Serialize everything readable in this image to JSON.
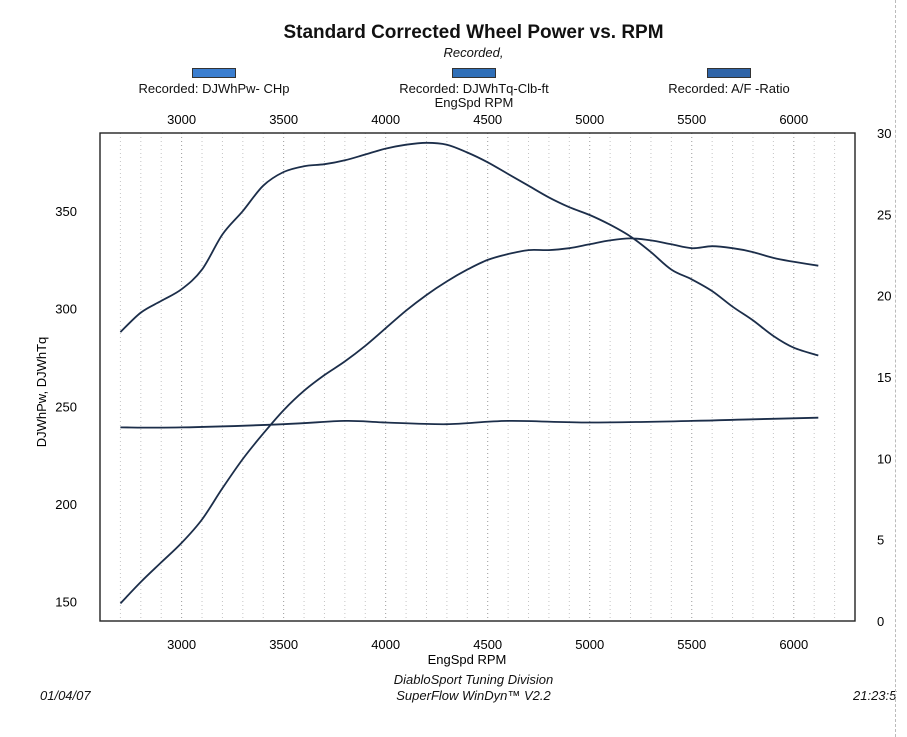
{
  "chart_data": {
    "type": "line",
    "title": "Standard Corrected Wheel Power vs. RPM",
    "subtitle": "Recorded,",
    "legend": [
      {
        "label": "Recorded: DJWhPw- CHp",
        "color": "#3a7ed0"
      },
      {
        "label": "Recorded: DJWhTq-Clb-ft",
        "color": "#2f6fb8"
      },
      {
        "label": "Recorded: A/F -Ratio",
        "color": "#2f64a8"
      }
    ],
    "top_axis_label": "EngSpd RPM",
    "xlabel": "EngSpd RPM",
    "ylabel": "DJWhPw, DJWhTq",
    "xlim": [
      2600,
      6300
    ],
    "ylim": [
      140,
      390
    ],
    "y2lim": [
      0,
      30
    ],
    "x_ticks": [
      3000,
      3500,
      4000,
      4500,
      5000,
      5500,
      6000
    ],
    "y_ticks": [
      150,
      200,
      250,
      300,
      350
    ],
    "y2_ticks": [
      0,
      5,
      10,
      15,
      20,
      25,
      30
    ],
    "grid": {
      "vertical": true,
      "horizontal": false
    },
    "series": [
      {
        "name": "DJWhPw- CHp",
        "axis": "left",
        "x": [
          2700,
          2800,
          2900,
          3000,
          3100,
          3200,
          3300,
          3400,
          3500,
          3600,
          3700,
          3800,
          3900,
          4000,
          4100,
          4200,
          4300,
          4400,
          4500,
          4600,
          4700,
          4800,
          4900,
          5000,
          5100,
          5200,
          5300,
          5400,
          5500,
          5600,
          5700,
          5800,
          5900,
          6000,
          6120
        ],
        "y": [
          149,
          160,
          170,
          180,
          192,
          208,
          223,
          236,
          248,
          258,
          266,
          273,
          281,
          290,
          299,
          307,
          314,
          320,
          325,
          328,
          330,
          330,
          331,
          333,
          335,
          336,
          335,
          333,
          331,
          332,
          331,
          329,
          326,
          324,
          322
        ]
      },
      {
        "name": "DJWhTq-Clb-ft",
        "axis": "left",
        "x": [
          2700,
          2800,
          2900,
          3000,
          3100,
          3200,
          3300,
          3400,
          3500,
          3600,
          3700,
          3800,
          3900,
          4000,
          4100,
          4200,
          4300,
          4400,
          4500,
          4600,
          4700,
          4800,
          4900,
          5000,
          5100,
          5200,
          5300,
          5400,
          5500,
          5600,
          5700,
          5800,
          5900,
          6000,
          6120
        ],
        "y": [
          288,
          298,
          304,
          310,
          320,
          338,
          350,
          363,
          370,
          373,
          374,
          376,
          379,
          382,
          384,
          385,
          384,
          380,
          375,
          369,
          363,
          357,
          352,
          348,
          343,
          337,
          329,
          320,
          315,
          309,
          301,
          294,
          286,
          280,
          276
        ]
      },
      {
        "name": "A/F -Ratio",
        "axis": "right",
        "x": [
          2700,
          3000,
          3500,
          3800,
          4000,
          4300,
          4600,
          5000,
          5500,
          5800,
          6120
        ],
        "y": [
          11.9,
          11.9,
          12.1,
          12.3,
          12.2,
          12.1,
          12.3,
          12.2,
          12.3,
          12.4,
          12.5
        ]
      }
    ]
  },
  "footer": {
    "date": "01/04/07",
    "company": "DiabloSport Tuning Division",
    "software": "SuperFlow WinDyn™ V2.2",
    "time": "21:23:5"
  }
}
